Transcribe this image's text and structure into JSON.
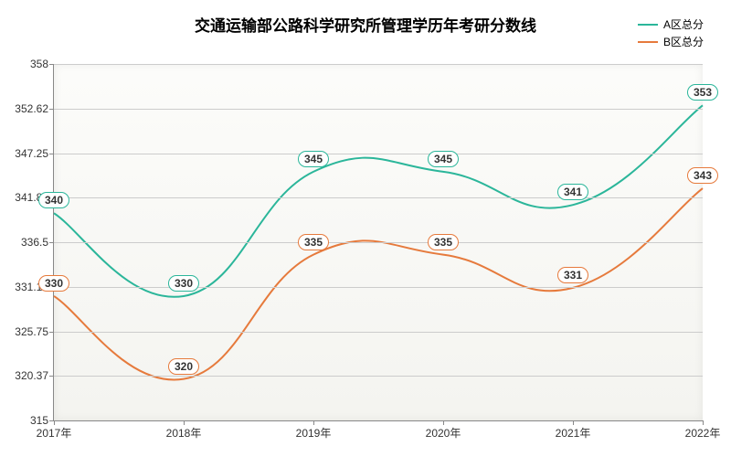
{
  "chart": {
    "type": "line",
    "title": "交通运输部公路科学研究所管理学历年考研分数线",
    "title_fontsize": 17,
    "title_color": "#000000",
    "background_gradient": [
      "#fcfcfa",
      "#f4f4f0"
    ],
    "plot_border_color": "#888888",
    "grid_color": "#cccccc",
    "xlabels": [
      "2017年",
      "2018年",
      "2019年",
      "2020年",
      "2021年",
      "2022年"
    ],
    "ymin": 315,
    "ymax": 358,
    "yticks": [
      315,
      320.37,
      325.75,
      331.12,
      336.5,
      341.87,
      347.25,
      352.62,
      358
    ],
    "tick_fontsize": 12,
    "tick_color": "#333333",
    "line_width": 2,
    "smooth": true,
    "legend_position": "top-right",
    "legend_fontsize": 12,
    "datalabel_fontsize": 12,
    "datalabel_bg": "#ffffff",
    "label_border_width": 1,
    "series": [
      {
        "name": "A区总分",
        "color": "#2bb69a",
        "values": [
          340,
          330,
          345,
          345,
          341,
          353
        ],
        "label_offset_y": -14
      },
      {
        "name": "B区总分",
        "color": "#e67a3c",
        "values": [
          330,
          320,
          335,
          335,
          331,
          343
        ],
        "label_offset_y": -14
      }
    ]
  }
}
